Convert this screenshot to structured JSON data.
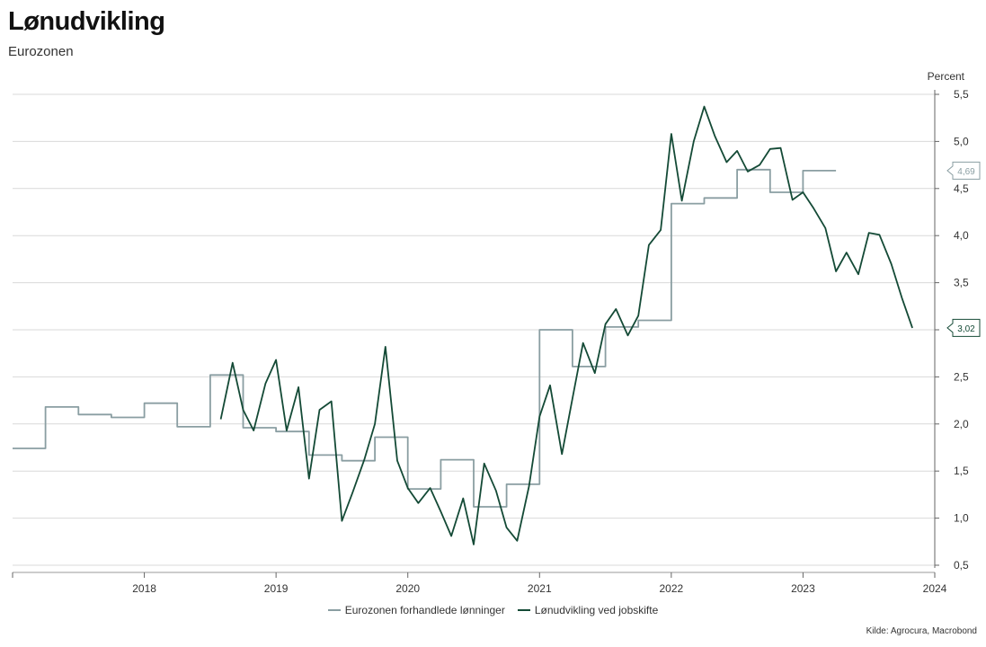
{
  "header": {
    "title": "Lønudvikling",
    "subtitle": "Eurozonen"
  },
  "footer": {
    "source": "Kilde: Agrocura, Macrobond"
  },
  "chart_data": {
    "type": "line",
    "ylabel": "Percent",
    "ylim": [
      0.5,
      5.5
    ],
    "yticks": [
      "0,5",
      "1,0",
      "1,5",
      "2,0",
      "2,5",
      "3,0",
      "3,5",
      "4,0",
      "4,5",
      "5,0",
      "5,5"
    ],
    "yaxis_position": "right",
    "grid": true,
    "legend_position": "bottom",
    "x_tick_labels": [
      "2018",
      "2019",
      "2020",
      "2021",
      "2022",
      "2023",
      "2024"
    ],
    "series": [
      {
        "name": "Eurozonen forhandlede lønninger",
        "color": "#8a9ea2",
        "end_label": "4,69",
        "values": [
          [
            2017.5,
            1.74
          ],
          [
            2017.75,
            1.74
          ],
          [
            2017.75,
            2.18
          ],
          [
            2018.0,
            2.18
          ],
          [
            2018.0,
            2.1
          ],
          [
            2018.25,
            2.1
          ],
          [
            2018.25,
            2.07
          ],
          [
            2018.5,
            2.07
          ],
          [
            2018.5,
            2.22
          ],
          [
            2018.75,
            2.22
          ],
          [
            2018.75,
            1.97
          ],
          [
            2019.0,
            1.97
          ],
          [
            2019.0,
            2.52
          ],
          [
            2019.25,
            2.52
          ],
          [
            2019.25,
            1.96
          ],
          [
            2019.5,
            1.96
          ],
          [
            2019.5,
            1.92
          ],
          [
            2019.75,
            1.92
          ],
          [
            2019.75,
            1.67
          ],
          [
            2020.0,
            1.67
          ],
          [
            2020.0,
            1.61
          ],
          [
            2020.25,
            1.61
          ],
          [
            2020.25,
            1.86
          ],
          [
            2020.5,
            1.86
          ],
          [
            2020.5,
            1.31
          ],
          [
            2020.75,
            1.31
          ],
          [
            2020.75,
            1.62
          ],
          [
            2021.0,
            1.62
          ],
          [
            2021.0,
            1.12
          ],
          [
            2021.25,
            1.12
          ],
          [
            2021.25,
            1.36
          ],
          [
            2021.5,
            1.36
          ],
          [
            2021.5,
            3.0
          ],
          [
            2021.75,
            3.0
          ],
          [
            2021.75,
            2.61
          ],
          [
            2022.0,
            2.61
          ],
          [
            2022.0,
            3.03
          ],
          [
            2022.25,
            3.03
          ],
          [
            2022.25,
            3.1
          ],
          [
            2022.5,
            3.1
          ],
          [
            2022.5,
            4.34
          ],
          [
            2022.75,
            4.34
          ],
          [
            2022.75,
            4.4
          ],
          [
            2023.0,
            4.4
          ],
          [
            2023.0,
            4.7
          ],
          [
            2023.25,
            4.7
          ],
          [
            2023.25,
            4.46
          ],
          [
            2023.5,
            4.46
          ],
          [
            2023.5,
            4.69
          ],
          [
            2023.75,
            4.69
          ]
        ]
      },
      {
        "name": "Lønudvikling ved jobskifte",
        "color": "#144a36",
        "end_label": "3,02",
        "values": [
          [
            2019.08,
            2.05
          ],
          [
            2019.17,
            2.65
          ],
          [
            2019.25,
            2.15
          ],
          [
            2019.33,
            1.93
          ],
          [
            2019.42,
            2.43
          ],
          [
            2019.5,
            2.68
          ],
          [
            2019.58,
            1.93
          ],
          [
            2019.67,
            2.39
          ],
          [
            2019.75,
            1.42
          ],
          [
            2019.83,
            2.15
          ],
          [
            2019.92,
            2.24
          ],
          [
            2020.0,
            0.97
          ],
          [
            2020.08,
            1.27
          ],
          [
            2020.17,
            1.62
          ],
          [
            2020.25,
            2.0
          ],
          [
            2020.33,
            2.82
          ],
          [
            2020.42,
            1.61
          ],
          [
            2020.5,
            1.32
          ],
          [
            2020.58,
            1.16
          ],
          [
            2020.67,
            1.32
          ],
          [
            2020.75,
            1.07
          ],
          [
            2020.83,
            0.81
          ],
          [
            2020.92,
            1.21
          ],
          [
            2021.0,
            0.72
          ],
          [
            2021.08,
            1.58
          ],
          [
            2021.17,
            1.29
          ],
          [
            2021.25,
            0.9
          ],
          [
            2021.33,
            0.76
          ],
          [
            2021.42,
            1.34
          ],
          [
            2021.5,
            2.08
          ],
          [
            2021.58,
            2.41
          ],
          [
            2021.67,
            1.68
          ],
          [
            2021.75,
            2.27
          ],
          [
            2021.83,
            2.86
          ],
          [
            2021.92,
            2.54
          ],
          [
            2022.0,
            3.06
          ],
          [
            2022.08,
            3.22
          ],
          [
            2022.17,
            2.94
          ],
          [
            2022.25,
            3.15
          ],
          [
            2022.33,
            3.9
          ],
          [
            2022.42,
            4.06
          ],
          [
            2022.5,
            5.08
          ],
          [
            2022.58,
            4.37
          ],
          [
            2022.67,
            5.0
          ],
          [
            2022.75,
            5.37
          ],
          [
            2022.83,
            5.06
          ],
          [
            2022.92,
            4.78
          ],
          [
            2023.0,
            4.9
          ],
          [
            2023.08,
            4.68
          ],
          [
            2023.17,
            4.75
          ],
          [
            2023.25,
            4.92
          ],
          [
            2023.33,
            4.93
          ],
          [
            2023.42,
            4.38
          ],
          [
            2023.5,
            4.46
          ],
          [
            2023.58,
            4.29
          ],
          [
            2023.67,
            4.08
          ],
          [
            2023.75,
            3.62
          ],
          [
            2023.83,
            3.82
          ],
          [
            2023.92,
            3.59
          ],
          [
            2024.0,
            4.03
          ],
          [
            2024.08,
            4.01
          ],
          [
            2024.17,
            3.7
          ],
          [
            2024.25,
            3.34
          ],
          [
            2024.33,
            3.02
          ]
        ]
      }
    ]
  }
}
